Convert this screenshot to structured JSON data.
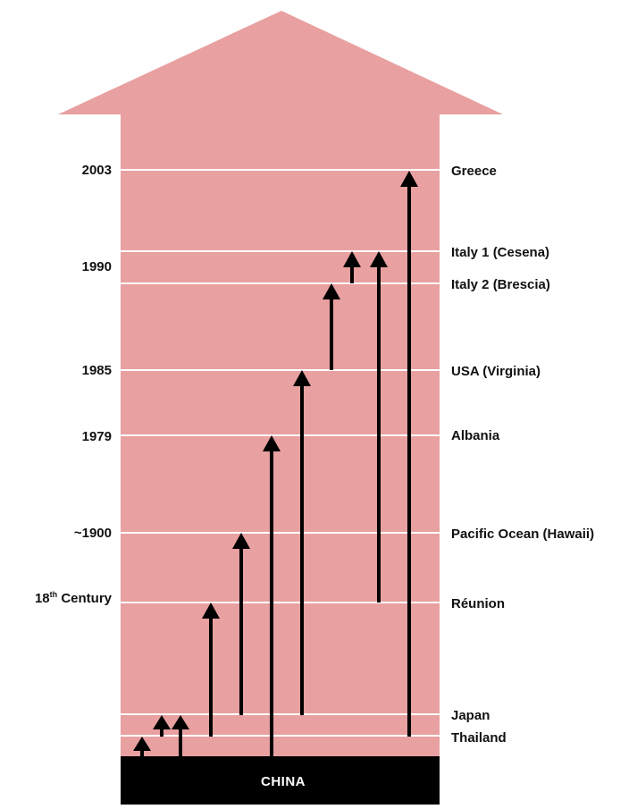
{
  "diagram": {
    "base_label": "CHINA",
    "year_labels": [
      {
        "text": "2003"
      },
      {
        "text": "1990"
      },
      {
        "text": "1985"
      },
      {
        "text": "1979"
      },
      {
        "text": "~1900"
      },
      {
        "text": "18",
        "sup": "th",
        "rest": " Century"
      }
    ],
    "place_labels": [
      "Greece",
      "Italy 1 (Cesena)",
      "Italy 2 (Brescia)",
      "USA (Virginia)",
      "Albania",
      "Pacific Ocean (Hawaii)",
      "Réunion",
      "Japan",
      "Thailand"
    ]
  },
  "colors": {
    "arrow_fill": "#e8a0a0",
    "base_fill": "#000000",
    "line_color": "#ffffff",
    "arrow_color": "#000000"
  }
}
